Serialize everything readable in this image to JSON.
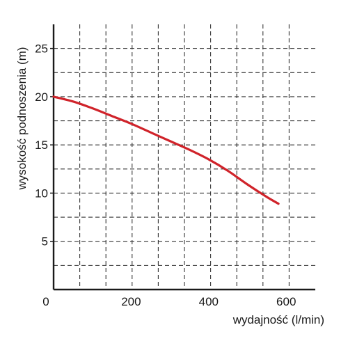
{
  "chart_data": {
    "type": "line",
    "xlabel": "wydajność (l/min)",
    "ylabel": "wysokość podnoszenia (m)",
    "xlim": [
      0,
      675
    ],
    "ylim": [
      0,
      27.5
    ],
    "x_ticks": [
      0,
      200,
      400,
      600
    ],
    "x_tick_labels": [
      "0",
      "200",
      "400",
      "600"
    ],
    "y_ticks": [
      5,
      10,
      15,
      20,
      25
    ],
    "y_tick_labels": [
      "5",
      "10",
      "15",
      "20",
      "25"
    ],
    "x_grid": [
      67.5,
      135,
      202.5,
      270,
      337.5,
      405,
      472.5,
      540,
      607.5
    ],
    "y_grid": [
      2.5,
      5,
      7.5,
      10,
      12.5,
      15,
      17.5,
      20,
      22.5,
      25
    ],
    "grid": true,
    "grid_style": "dashed",
    "colors": {
      "line": "#d0232a",
      "axis": "#1a1a1a",
      "grid": "#333333"
    },
    "series": [
      {
        "x": [
          0,
          50,
          100,
          150,
          200,
          250,
          300,
          350,
          400,
          450,
          500,
          550,
          580
        ],
        "y": [
          20.0,
          19.5,
          18.8,
          18.0,
          17.2,
          16.3,
          15.4,
          14.5,
          13.5,
          12.3,
          10.9,
          9.6,
          8.9
        ]
      }
    ]
  }
}
